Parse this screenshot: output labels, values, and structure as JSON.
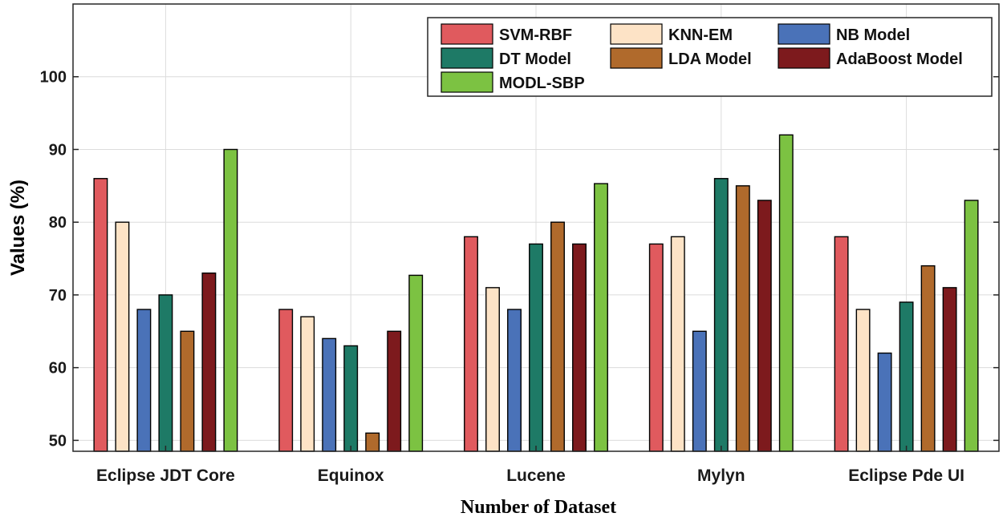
{
  "chart_data": {
    "type": "bar",
    "categories": [
      "Eclipse JDT Core",
      "Equinox",
      "Lucene",
      "Mylyn",
      "Eclipse Pde UI"
    ],
    "series": [
      {
        "name": "SVM-RBF",
        "color": "#e05a5e",
        "values": [
          86,
          68,
          78,
          77,
          78
        ]
      },
      {
        "name": "KNN-EM",
        "color": "#fde3c6",
        "values": [
          80,
          67,
          71,
          78,
          68
        ]
      },
      {
        "name": "NB Model",
        "color": "#4a72b8",
        "values": [
          68,
          64,
          68,
          65,
          62
        ]
      },
      {
        "name": "DT Model",
        "color": "#1e7a66",
        "values": [
          70,
          63,
          77,
          86,
          69
        ]
      },
      {
        "name": "LDA Model",
        "color": "#b06a2c",
        "values": [
          65,
          51,
          80,
          85,
          74
        ]
      },
      {
        "name": "AdaBoost Model",
        "color": "#7d1a1d",
        "values": [
          73,
          65,
          77,
          83,
          71
        ]
      },
      {
        "name": "MODL-SBP",
        "color": "#7cc242",
        "values": [
          90,
          72.7,
          85.3,
          92,
          83
        ]
      }
    ],
    "xlabel": "Number of Dataset",
    "ylabel": "Values (%)",
    "ylim": [
      48.5,
      110
    ],
    "yticks": [
      "50",
      "60",
      "70",
      "80",
      "90",
      "100"
    ],
    "grid": true,
    "legend_position": "top-right"
  }
}
